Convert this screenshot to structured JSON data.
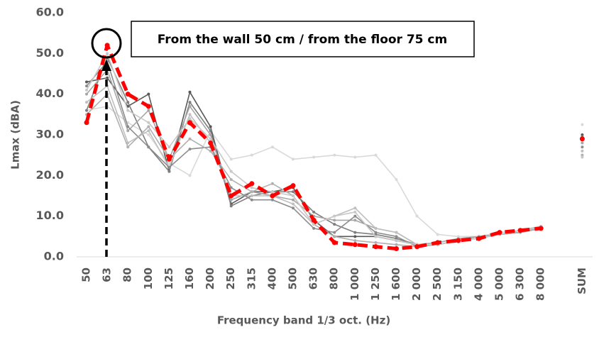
{
  "chart_data": {
    "type": "line",
    "annotation": "From the wall 50 cm / from the floor 75 cm",
    "x_label": "Frequency band 1/3 oct. (Hz)",
    "y_label": "Lmax (dBA)",
    "categories": [
      "50",
      "63",
      "80",
      "100",
      "125",
      "160",
      "200",
      "250",
      "315",
      "400",
      "500",
      "630",
      "800",
      "1 000",
      "1 250",
      "1 600",
      "2 000",
      "2 500",
      "3 150",
      "4 000",
      "5 000",
      "6 300",
      "8 000",
      null,
      "SUM"
    ],
    "ylim": [
      0,
      60
    ],
    "yticks": [
      {
        "value": 0,
        "label": "0.0"
      },
      {
        "value": 10,
        "label": "10.0"
      },
      {
        "value": 20,
        "label": "20.0"
      },
      {
        "value": 30,
        "label": "30.0"
      },
      {
        "value": 40,
        "label": "40.0"
      },
      {
        "value": 50,
        "label": "50.0"
      },
      {
        "value": 60,
        "label": "60.0"
      }
    ],
    "series": [
      {
        "color": "#d9d9d9",
        "values": [
          36,
          37,
          33,
          30,
          23,
          20,
          31,
          24,
          25,
          27,
          24,
          24.5,
          25,
          24.5,
          25,
          19,
          10,
          5.5,
          5,
          5,
          6,
          6.5,
          7,
          null,
          32.5
        ]
      },
      {
        "color": "#595959",
        "values": [
          43,
          44,
          37,
          40,
          21,
          40.5,
          32,
          13,
          16,
          16,
          17,
          9,
          5,
          5,
          5,
          4,
          3,
          3,
          4,
          5,
          5.5,
          6.5,
          7.5,
          null,
          30
        ]
      },
      {
        "color": "#7f7f7f",
        "values": [
          36,
          49,
          38,
          27,
          21,
          38,
          31,
          12.5,
          15,
          16,
          16,
          11,
          8,
          6,
          5.5,
          4.5,
          3,
          3,
          4,
          5,
          5.5,
          6,
          7,
          null,
          29.5
        ]
      },
      {
        "color": "#a6a6a6",
        "values": [
          40,
          46,
          31,
          36,
          24,
          37,
          30,
          14,
          16,
          15,
          14,
          10,
          9,
          9,
          7,
          6,
          3,
          3.5,
          4.5,
          5,
          5.5,
          6,
          7,
          null,
          28
        ]
      },
      {
        "color": "#bfbfbf",
        "values": [
          38,
          42,
          28,
          31,
          22,
          35,
          28,
          15,
          15,
          15,
          13,
          8,
          10,
          12,
          7,
          6,
          3,
          3,
          4,
          5,
          5.5,
          6.5,
          7,
          null,
          26
        ]
      },
      {
        "color": "#8c8c8c",
        "values": [
          42,
          48,
          32,
          27,
          22,
          26.5,
          27,
          17,
          14,
          14,
          12,
          7,
          6,
          10,
          6,
          5,
          2.5,
          3,
          4,
          5,
          5.5,
          6,
          7,
          null,
          27
        ]
      },
      {
        "color": "#b0b0b0",
        "values": [
          35,
          40,
          27,
          32,
          24,
          29,
          26,
          19,
          16,
          18,
          15,
          8,
          5,
          4,
          3.5,
          3,
          2.5,
          3,
          4,
          5,
          5.5,
          6,
          7,
          null,
          25
        ]
      },
      {
        "color": "#c8c8c8",
        "values": [
          41,
          50,
          36,
          33,
          27,
          34,
          29,
          21,
          17,
          16,
          15,
          8,
          10,
          11,
          5,
          4,
          3,
          3,
          4,
          4.5,
          5.5,
          6.5,
          7.5,
          null,
          24.5
        ]
      },
      {
        "color": "#ff0000",
        "line_style": "dashed",
        "values": [
          33,
          52,
          40,
          37,
          24,
          33,
          28,
          15,
          18,
          15,
          17.5,
          9,
          3.5,
          3,
          2.5,
          2,
          2.5,
          3.5,
          4,
          4.5,
          6,
          6.5,
          7,
          null,
          29
        ]
      }
    ]
  }
}
